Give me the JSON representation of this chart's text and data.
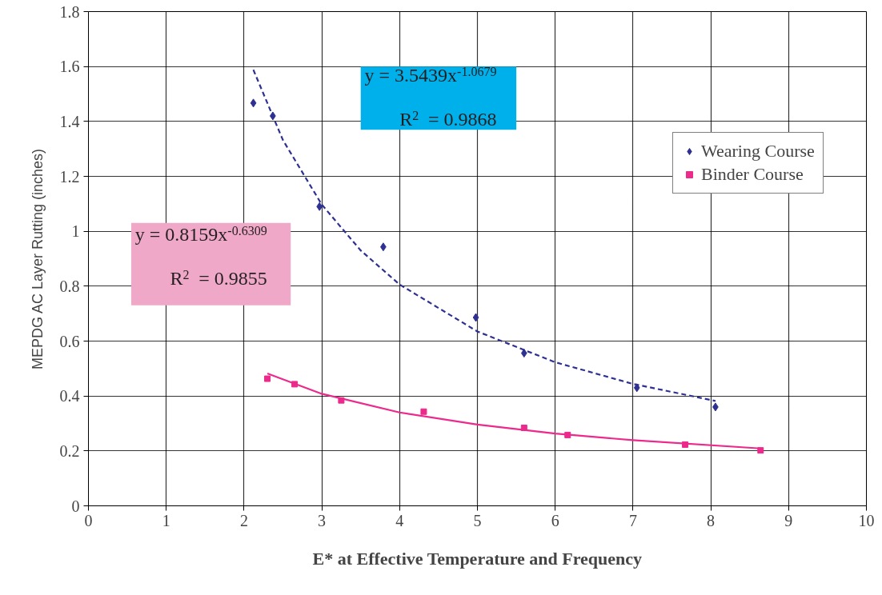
{
  "chart_data": {
    "type": "scatter",
    "xlabel": "E* at Effective Temperature and Frequency",
    "ylabel": "MEPDG AC Layer Rutting (inches)",
    "xlim": [
      0,
      10
    ],
    "ylim": [
      0,
      1.8
    ],
    "xticks": [
      0,
      1,
      2,
      3,
      4,
      5,
      6,
      7,
      8,
      9,
      10
    ],
    "yticks": [
      0,
      0.2,
      0.4,
      0.6,
      0.8,
      1,
      1.2,
      1.4,
      1.6,
      1.8
    ],
    "grid": true,
    "legend": "top right",
    "series": [
      {
        "name": "Wearing Course",
        "marker": "diamond",
        "color": "#2e3192",
        "x": [
          2.12,
          2.37,
          2.97,
          3.79,
          4.98,
          5.6,
          7.05,
          8.06
        ],
        "values": [
          1.467,
          1.42,
          1.09,
          0.943,
          0.686,
          0.556,
          0.43,
          0.36
        ]
      },
      {
        "name": "Binder Course",
        "marker": "square",
        "color": "#ec2a8c",
        "x": [
          2.3,
          2.65,
          3.25,
          4.31,
          5.6,
          6.16,
          7.67,
          8.64
        ],
        "values": [
          0.463,
          0.443,
          0.384,
          0.343,
          0.284,
          0.258,
          0.223,
          0.202
        ]
      },
      {
        "type": "line",
        "line_style": "dashed",
        "color": "#2e3192",
        "x": [
          2.12,
          2.5,
          3,
          3.5,
          4,
          5,
          6,
          7,
          8.06
        ],
        "values": [
          1.588,
          1.332,
          1.097,
          0.93,
          0.806,
          0.635,
          0.523,
          0.444,
          0.382
        ]
      },
      {
        "type": "line",
        "line_style": "solid",
        "color": "#ec2a8c",
        "x": [
          2.3,
          3,
          4,
          5,
          6,
          7,
          8.64
        ],
        "values": [
          0.482,
          0.408,
          0.34,
          0.296,
          0.263,
          0.239,
          0.209
        ]
      }
    ],
    "annotations": [
      "y = 3.5439x$^{-1.0679}$",
      "R$^{2}$ = 0.9868",
      "y = 0.8159x$^{-0.6309}$",
      "R$^{2}$ = 0.9855"
    ]
  }
}
